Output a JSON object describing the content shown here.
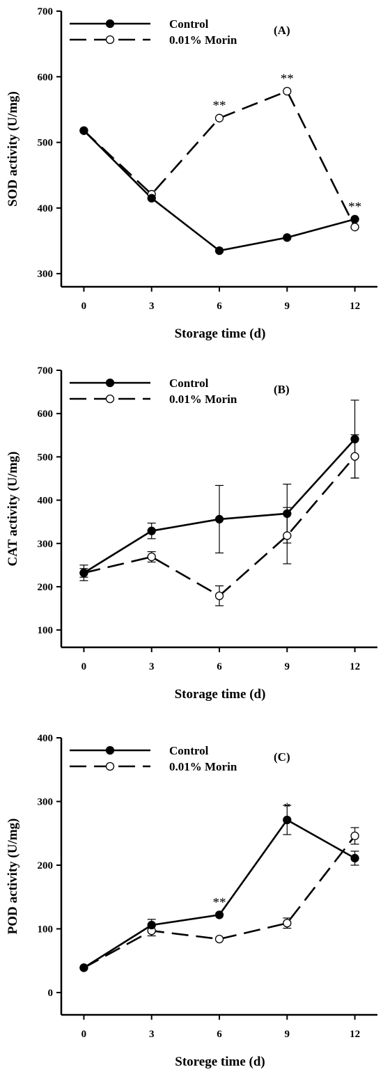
{
  "chart_data": [
    {
      "type": "line",
      "panel_label": "(A)",
      "xlabel": "Storage time (d)",
      "ylabel": "SOD activity (U/mg)",
      "x": [
        0,
        3,
        6,
        9,
        12
      ],
      "x_tick_labels": [
        "0",
        "3",
        "6",
        "9",
        "12"
      ],
      "xlim": [
        -1,
        13
      ],
      "ylim": [
        280,
        700
      ],
      "y_ticks": [
        300,
        400,
        500,
        600,
        700
      ],
      "y_tick_labels": [
        "300",
        "400",
        "500",
        "600",
        "700"
      ],
      "legend_position": "top-left",
      "series": [
        {
          "name": "Control",
          "style": "solid",
          "marker": "filled-circle",
          "values": [
            518,
            415,
            335,
            355,
            383
          ],
          "errors": [
            null,
            null,
            null,
            null,
            null
          ]
        },
        {
          "name": "0.01% Morin",
          "style": "dashed",
          "marker": "open-circle",
          "values": [
            518,
            421,
            537,
            578,
            371
          ],
          "errors": [
            null,
            null,
            null,
            null,
            null
          ]
        }
      ],
      "annotations": [
        {
          "text": "**",
          "x": 6,
          "y": 537
        },
        {
          "text": "**",
          "x": 9,
          "y": 578
        },
        {
          "text": "**",
          "x": 12,
          "y": 383
        }
      ]
    },
    {
      "type": "line",
      "panel_label": "(B)",
      "xlabel": "Storage time (d)",
      "ylabel": "CAT activity (U/mg)",
      "x": [
        0,
        3,
        6,
        9,
        12
      ],
      "x_tick_labels": [
        "0",
        "3",
        "6",
        "9",
        "12"
      ],
      "xlim": [
        -1,
        13
      ],
      "ylim": [
        60,
        700
      ],
      "y_ticks": [
        100,
        200,
        300,
        400,
        500,
        600,
        700
      ],
      "y_tick_labels": [
        "100",
        "200",
        "300",
        "400",
        "500",
        "600",
        "700"
      ],
      "legend_position": "top-left",
      "series": [
        {
          "name": "Control",
          "style": "solid",
          "marker": "filled-circle",
          "values": [
            232,
            329,
            356,
            369,
            541
          ],
          "errors": [
            18,
            18,
            78,
            68,
            90
          ]
        },
        {
          "name": "0.01% Morin",
          "style": "dashed",
          "marker": "open-circle",
          "values": [
            232,
            269,
            179,
            318,
            501
          ],
          "errors": [
            10,
            12,
            23,
            65,
            50
          ]
        }
      ],
      "annotations": []
    },
    {
      "type": "line",
      "panel_label": "(C)",
      "xlabel": "Storege time (d)",
      "ylabel": "POD activity (U/mg)",
      "x": [
        0,
        3,
        6,
        9,
        12
      ],
      "x_tick_labels": [
        "0",
        "3",
        "6",
        "9",
        "12"
      ],
      "xlim": [
        -1,
        13
      ],
      "ylim": [
        -35,
        400
      ],
      "y_ticks": [
        0,
        100,
        200,
        300,
        400
      ],
      "y_tick_labels": [
        "0",
        "100",
        "200",
        "300",
        "400"
      ],
      "legend_position": "top-left",
      "series": [
        {
          "name": "Control",
          "style": "solid",
          "marker": "filled-circle",
          "values": [
            39,
            106,
            122,
            271,
            211
          ],
          "errors": [
            null,
            9,
            null,
            23,
            11
          ]
        },
        {
          "name": "0.01% Morin",
          "style": "dashed",
          "marker": "open-circle",
          "values": [
            39,
            97,
            84,
            109,
            246
          ],
          "errors": [
            null,
            8,
            null,
            8,
            13
          ]
        }
      ],
      "annotations": [
        {
          "text": "**",
          "x": 6,
          "y": 122
        },
        {
          "text": "*",
          "x": 9,
          "y": 271
        }
      ]
    }
  ]
}
